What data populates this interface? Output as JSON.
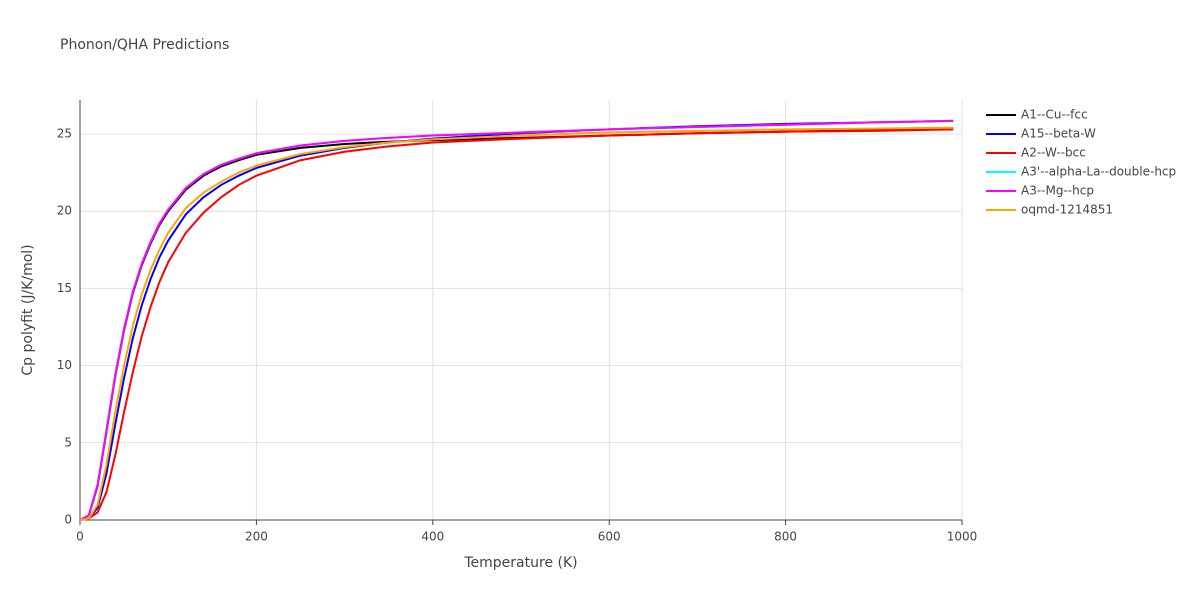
{
  "chart_data": {
    "type": "line",
    "title": "Phonon/QHA Predictions",
    "x_label": "Temperature (K)",
    "y_label": "Cp polyfit (J/K/mol)",
    "x": [
      0,
      10,
      20,
      30,
      40,
      50,
      60,
      70,
      80,
      90,
      100,
      120,
      140,
      160,
      180,
      200,
      250,
      300,
      350,
      400,
      500,
      600,
      700,
      800,
      900,
      990
    ],
    "xlim": [
      0,
      1000
    ],
    "xticks": [
      0,
      200,
      400,
      600,
      800,
      1000
    ],
    "ylim": [
      0,
      27.2
    ],
    "yticks": [
      0,
      5,
      10,
      15,
      20,
      25
    ],
    "grid": true,
    "legend": "right",
    "series": [
      {
        "name": "A1--Cu--fcc",
        "color": "#000000",
        "values": [
          0,
          0.3,
          2.2,
          5.7,
          9.3,
          12.3,
          14.7,
          16.5,
          17.9,
          19.1,
          20.0,
          21.4,
          22.3,
          22.9,
          23.3,
          23.65,
          24.1,
          24.35,
          24.5,
          24.6,
          24.75,
          24.9,
          25.05,
          25.15,
          25.25,
          25.35
        ]
      },
      {
        "name": "A15--beta-W",
        "color": "#0000ff",
        "values": [
          0,
          0.1,
          0.8,
          3.0,
          6.2,
          9.2,
          11.8,
          13.9,
          15.6,
          17.0,
          18.1,
          19.8,
          20.9,
          21.7,
          22.3,
          22.8,
          23.6,
          24.1,
          24.45,
          24.7,
          25.05,
          25.3,
          25.5,
          25.65,
          25.75,
          25.85
        ]
      },
      {
        "name": "A2--W--bcc",
        "color": "#ff0000",
        "values": [
          0,
          0.1,
          0.5,
          1.8,
          4.2,
          7.0,
          9.6,
          11.9,
          13.8,
          15.4,
          16.7,
          18.6,
          19.9,
          20.9,
          21.7,
          22.3,
          23.3,
          23.85,
          24.2,
          24.45,
          24.7,
          24.9,
          25.05,
          25.15,
          25.2,
          25.3
        ]
      },
      {
        "name": "A3'--alpha-La--double-hcp",
        "color": "#00ffff",
        "values": [
          0,
          0.3,
          2.3,
          5.8,
          9.4,
          12.4,
          14.8,
          16.6,
          18.0,
          19.2,
          20.1,
          21.5,
          22.4,
          23.0,
          23.4,
          23.75,
          24.25,
          24.55,
          24.75,
          24.9,
          25.1,
          25.3,
          25.45,
          25.6,
          25.75,
          25.85
        ]
      },
      {
        "name": "A3--Mg--hcp",
        "color": "#ff00ff",
        "values": [
          0,
          0.3,
          2.3,
          5.8,
          9.4,
          12.4,
          14.8,
          16.6,
          18.0,
          19.2,
          20.1,
          21.5,
          22.4,
          23.0,
          23.4,
          23.75,
          24.25,
          24.55,
          24.75,
          24.9,
          25.1,
          25.3,
          25.45,
          25.6,
          25.75,
          25.85
        ]
      },
      {
        "name": "oqmd-1214851",
        "color": "#ffa500",
        "values": [
          0,
          0.1,
          1.0,
          3.6,
          7.0,
          10.0,
          12.6,
          14.6,
          16.2,
          17.5,
          18.6,
          20.2,
          21.2,
          21.9,
          22.5,
          22.95,
          23.7,
          24.15,
          24.45,
          24.65,
          24.9,
          25.1,
          25.2,
          25.3,
          25.35,
          25.4
        ]
      }
    ]
  }
}
